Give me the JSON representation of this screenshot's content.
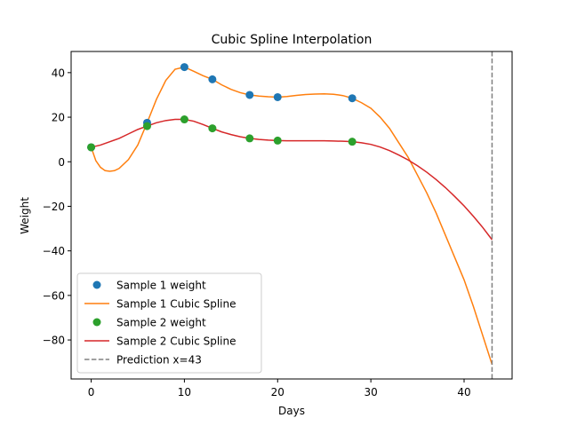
{
  "chart_data": {
    "type": "line",
    "title": "Cubic Spline Interpolation",
    "xlabel": "Days",
    "ylabel": "Weight",
    "xlim": [
      -2.15,
      45.15
    ],
    "ylim": [
      -97.5,
      49.5
    ],
    "xticks": [
      0,
      10,
      20,
      30,
      40
    ],
    "yticks": [
      -80,
      -60,
      -40,
      -20,
      0,
      20,
      40
    ],
    "grid": false,
    "legend_position": "lower-left",
    "series": [
      {
        "name": "Sample 1 weight",
        "kind": "scatter",
        "color": "#1f77b4",
        "x": [
          0,
          6,
          10,
          13,
          17,
          20,
          28
        ],
        "y": [
          6.5,
          17.5,
          42.5,
          37,
          30,
          29,
          28.5
        ]
      },
      {
        "name": "Sample 1 Cubic Spline",
        "kind": "line",
        "color": "#ff7f0e",
        "x": [
          0,
          0.5,
          1,
          1.5,
          2,
          2.5,
          3,
          4,
          5,
          6,
          7,
          8,
          9,
          10,
          11,
          12,
          13,
          14,
          15,
          16,
          17,
          18,
          19,
          20,
          21,
          22,
          23,
          24,
          25,
          26,
          27,
          28,
          29,
          30,
          31,
          32,
          33,
          34,
          35,
          36,
          37,
          38,
          39,
          40,
          41,
          42,
          43
        ],
        "y": [
          6.5,
          0.5,
          -2.5,
          -4,
          -4.3,
          -4,
          -3,
          1,
          7.5,
          17.5,
          28,
          36.5,
          41.5,
          42.5,
          40.6,
          38.6,
          37,
          34.5,
          32.5,
          31,
          30,
          29.5,
          29.2,
          29,
          29.3,
          29.8,
          30.2,
          30.4,
          30.5,
          30.3,
          29.7,
          28.5,
          26.5,
          24,
          20,
          15,
          8.5,
          2,
          -6,
          -14,
          -23,
          -33,
          -43,
          -53,
          -65,
          -78,
          -91
        ]
      },
      {
        "name": "Sample 2 weight",
        "kind": "scatter",
        "color": "#2ca02c",
        "x": [
          0,
          6,
          10,
          13,
          17,
          20,
          28
        ],
        "y": [
          6.5,
          16,
          19,
          15,
          10.5,
          9.5,
          9
        ]
      },
      {
        "name": "Sample 2 Cubic Spline",
        "kind": "line",
        "color": "#d62728",
        "x": [
          0,
          1,
          2,
          3,
          4,
          5,
          6,
          7,
          8,
          9,
          10,
          11,
          12,
          13,
          14,
          15,
          16,
          17,
          18,
          19,
          20,
          21,
          22,
          23,
          24,
          25,
          26,
          27,
          28,
          29,
          30,
          31,
          32,
          33,
          34,
          35,
          36,
          37,
          38,
          39,
          40,
          41,
          42,
          43
        ],
        "y": [
          6.5,
          7.5,
          9,
          10.5,
          12.5,
          14.5,
          16,
          17.5,
          18.5,
          19,
          19,
          18.2,
          16.7,
          15,
          13.4,
          12.2,
          11.2,
          10.5,
          10,
          9.7,
          9.5,
          9.4,
          9.4,
          9.4,
          9.4,
          9.4,
          9.3,
          9.2,
          9,
          8.5,
          7.8,
          6.6,
          5,
          3,
          0.8,
          -1.8,
          -4.7,
          -8,
          -11.6,
          -15.6,
          -19.8,
          -24.5,
          -29.5,
          -35
        ]
      },
      {
        "name": "Prediction x=43",
        "kind": "vline",
        "color": "#808080",
        "x": 43
      }
    ]
  }
}
